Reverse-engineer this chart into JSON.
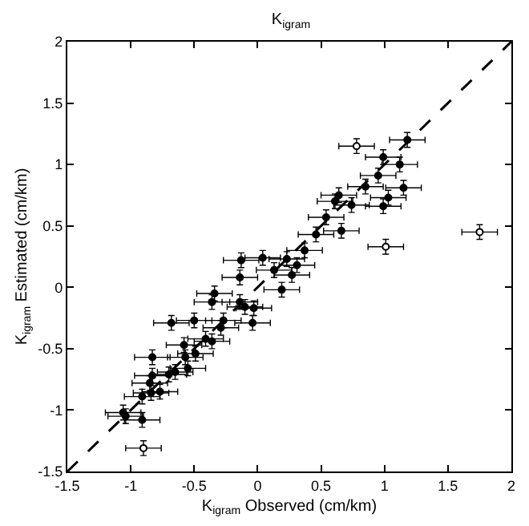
{
  "chart_data": {
    "type": "scatter",
    "title": "K$_{igram}$",
    "xlabel": "K$_{igram}$ Observed (cm/km)",
    "ylabel": "K$_{igram}$ Estimated (cm/km)",
    "xlim": [
      -1.5,
      2
    ],
    "ylim": [
      -1.5,
      2
    ],
    "xticks": [
      -1.5,
      -1,
      -0.5,
      0,
      0.5,
      1,
      1.5,
      2
    ],
    "yticks": [
      -1.5,
      -1,
      -0.5,
      0,
      0.5,
      1,
      1.5,
      2
    ],
    "marker": "circle",
    "series": [
      {
        "color": "#000000",
        "x": [
          0.78,
          1.18,
          0.99,
          1.12,
          0.95,
          0.85,
          1.15,
          1.03,
          0.99,
          0.64,
          0.61,
          0.74,
          0.54,
          0.46,
          0.66,
          1.01,
          1.75,
          0.37,
          -0.13,
          0.04,
          0.23,
          0.13,
          -0.14,
          0.31,
          0.27,
          0.19,
          -0.34,
          -0.36,
          -0.14,
          -0.1,
          -0.03,
          -0.68,
          -0.5,
          -0.04,
          -0.27,
          -0.29,
          -0.41,
          -0.36,
          -0.58,
          -0.49,
          -0.57,
          -0.83,
          -0.55,
          -0.7,
          -0.65,
          -0.83,
          -0.85,
          -0.77,
          -0.84,
          -0.91,
          -1.06,
          -1.04,
          -0.91,
          -0.9
        ],
        "values": [
          1.15,
          1.2,
          1.06,
          1.0,
          0.91,
          0.82,
          0.81,
          0.73,
          0.66,
          0.75,
          0.7,
          0.67,
          0.57,
          0.43,
          0.46,
          0.33,
          0.45,
          0.3,
          0.22,
          0.24,
          0.23,
          0.14,
          0.08,
          0.18,
          0.1,
          -0.02,
          -0.05,
          -0.12,
          -0.12,
          -0.16,
          -0.17,
          -0.29,
          -0.27,
          -0.29,
          -0.27,
          -0.33,
          -0.42,
          -0.44,
          -0.47,
          -0.54,
          -0.57,
          -0.57,
          -0.66,
          -0.71,
          -0.69,
          -0.72,
          -0.78,
          -0.85,
          -0.86,
          -0.89,
          -1.02,
          -1.05,
          -1.08,
          -1.31
        ],
        "colors": [
          "#ffffff",
          "#000000",
          "#000000",
          "#000000",
          "#000000",
          "#000000",
          "#000000",
          "#000000",
          "#000000",
          "#000000",
          "#000000",
          "#000000",
          "#000000",
          "#000000",
          "#000000",
          "#ffffff",
          "#ffffff",
          "#000000",
          "#000000",
          "#000000",
          "#000000",
          "#000000",
          "#000000",
          "#000000",
          "#000000",
          "#000000",
          "#000000",
          "#000000",
          "#000000",
          "#000000",
          "#000000",
          "#000000",
          "#000000",
          "#000000",
          "#000000",
          "#000000",
          "#000000",
          "#000000",
          "#000000",
          "#000000",
          "#000000",
          "#000000",
          "#000000",
          "#000000",
          "#000000",
          "#000000",
          "#000000",
          "#000000",
          "#000000",
          "#000000",
          "#000000",
          "#000000",
          "#000000",
          "#ffffff"
        ],
        "errors": [
          0.06,
          0.06,
          0.06,
          0.06,
          0.06,
          0.06,
          0.06,
          0.06,
          0.06,
          0.06,
          0.06,
          0.06,
          0.06,
          0.06,
          0.06,
          0.06,
          0.06,
          0.06,
          0.06,
          0.06,
          0.06,
          0.06,
          0.06,
          0.06,
          0.06,
          0.06,
          0.06,
          0.06,
          0.06,
          0.06,
          0.06,
          0.06,
          0.06,
          0.06,
          0.06,
          0.06,
          0.06,
          0.06,
          0.06,
          0.06,
          0.06,
          0.06,
          0.06,
          0.06,
          0.06,
          0.06,
          0.06,
          0.06,
          0.06,
          0.06,
          0.06,
          0.06,
          0.06,
          0.06
        ],
        "xerrors": [
          0.14,
          0.14,
          0.14,
          0.14,
          0.14,
          0.14,
          0.14,
          0.14,
          0.14,
          0.14,
          0.14,
          0.14,
          0.14,
          0.14,
          0.14,
          0.14,
          0.14,
          0.14,
          0.14,
          0.14,
          0.14,
          0.14,
          0.14,
          0.14,
          0.14,
          0.14,
          0.14,
          0.14,
          0.14,
          0.14,
          0.14,
          0.14,
          0.14,
          0.14,
          0.14,
          0.14,
          0.14,
          0.14,
          0.14,
          0.14,
          0.14,
          0.14,
          0.14,
          0.14,
          0.14,
          0.14,
          0.14,
          0.14,
          0.14,
          0.14,
          0.14,
          0.14,
          0.14,
          0.14
        ]
      },
      {
        "type": "line",
        "color": "#000000",
        "x": [
          -1.5,
          2
        ],
        "values": [
          -1.5,
          2
        ],
        "line_style": "dashed",
        "marker": "none"
      }
    ]
  }
}
